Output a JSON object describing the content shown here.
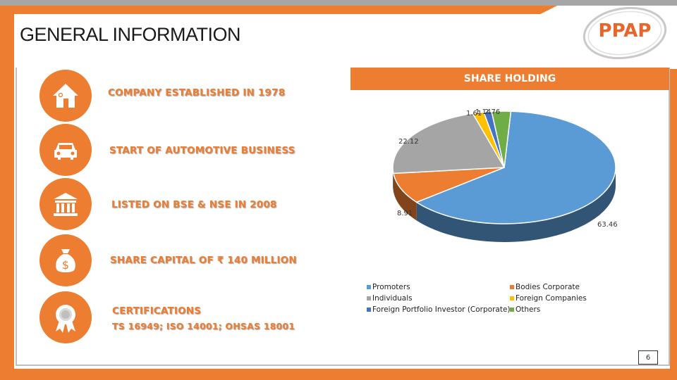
{
  "page": {
    "title": "GENERAL INFORMATION",
    "page_number": "6"
  },
  "logo": {
    "text": "PPAP",
    "brand_color": "#e8662a"
  },
  "info_items": [
    {
      "icon": "house-icon",
      "text": "COMPANY ESTABLISHED IN 1978"
    },
    {
      "icon": "car-icon",
      "text": "START OF AUTOMOTIVE BUSINESS"
    },
    {
      "icon": "bank-icon",
      "text": "LISTED ON BSE & NSE IN 2008"
    },
    {
      "icon": "money-bag-icon",
      "text": "SHARE CAPITAL OF ₹ 140 MILLION"
    },
    {
      "icon": "award-ribbon-icon",
      "text": "CERTIFICATIONS",
      "subtext": "TS 16949; ISO 14001; OHSAS 18001"
    }
  ],
  "colors": {
    "accent": "#ed7d31",
    "frame_gray": "#a6a6a6"
  },
  "chart_data": {
    "type": "pie",
    "title": "SHARE HOLDING",
    "three_d": true,
    "legend_position": "bottom",
    "categories": [
      "Promoters",
      "Bodies Corporate",
      "Individuals",
      "Foreign Companies",
      "Foreign Portfolio Investor (Corporate)",
      "Others"
    ],
    "values": [
      63.46,
      8.91,
      22.12,
      1.61,
      1.14,
      2.76
    ],
    "labels": [
      "63.46",
      "8.91",
      "22.12",
      "1.61",
      "1.14",
      "2.76"
    ],
    "colors": [
      "#5b9bd5",
      "#ed7d31",
      "#a5a5a5",
      "#ffc000",
      "#4472c4",
      "#70ad47"
    ],
    "legend": [
      {
        "label": "Promoters",
        "color": "#5b9bd5"
      },
      {
        "label": "Bodies Corporate",
        "color": "#ed7d31"
      },
      {
        "label": "Individuals",
        "color": "#a5a5a5"
      },
      {
        "label": "Foreign Companies",
        "color": "#ffc000"
      },
      {
        "label": "Foreign Portfolio Investor (Corporate)",
        "color": "#4472c4"
      },
      {
        "label": "Others",
        "color": "#70ad47"
      }
    ]
  }
}
